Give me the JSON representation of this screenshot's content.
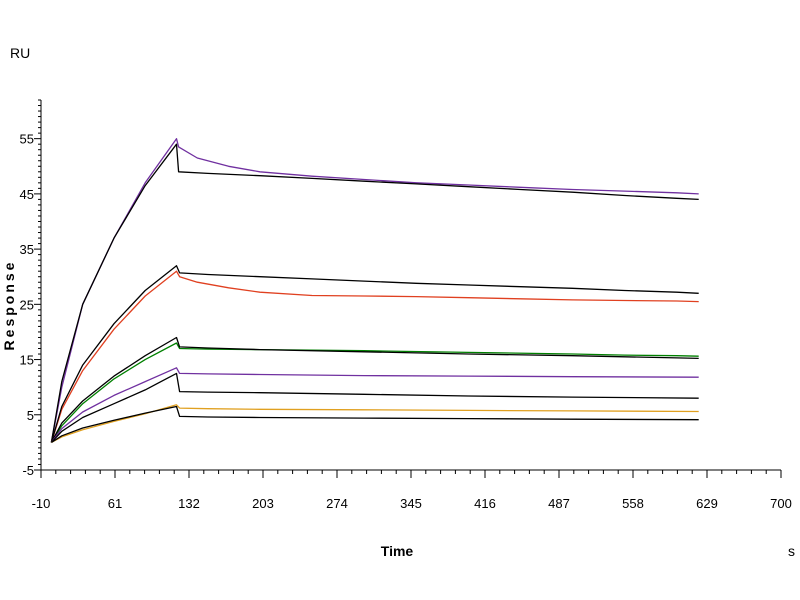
{
  "chart_data": {
    "type": "line",
    "title": "",
    "xlabel": "Time",
    "ylabel": "Response",
    "x_unit": "s",
    "y_unit": "RU",
    "xlim": [
      -10,
      700
    ],
    "ylim": [
      -5,
      62
    ],
    "x_ticks": [
      -10,
      61,
      132,
      203,
      274,
      345,
      416,
      487,
      558,
      629,
      700
    ],
    "y_ticks": [
      -5,
      5,
      15,
      25,
      35,
      45,
      55
    ],
    "grid": false,
    "legend": "none",
    "series": [
      {
        "color": "#7030a0",
        "x": [
          0,
          10,
          30,
          60,
          90,
          120,
          122,
          140,
          170,
          200,
          250,
          300,
          350,
          400,
          450,
          500,
          550,
          600,
          621
        ],
        "y": [
          0,
          10,
          25,
          37,
          47,
          55,
          53.5,
          51.5,
          50,
          49,
          48.2,
          47.6,
          47,
          46.6,
          46.2,
          45.8,
          45.5,
          45.2,
          45
        ]
      },
      {
        "color": "#000000",
        "x": [
          0,
          10,
          30,
          60,
          90,
          120,
          122,
          150,
          200,
          250,
          300,
          350,
          400,
          450,
          500,
          550,
          600,
          621
        ],
        "y": [
          0,
          11,
          25,
          37,
          46.5,
          54,
          49,
          48.7,
          48.3,
          47.8,
          47.3,
          46.8,
          46.3,
          45.8,
          45.3,
          44.7,
          44.2,
          44
        ]
      },
      {
        "color": "#e04020",
        "x": [
          0,
          10,
          30,
          60,
          90,
          120,
          123,
          140,
          170,
          200,
          250,
          300,
          350,
          400,
          450,
          500,
          550,
          600,
          621
        ],
        "y": [
          0,
          6,
          13,
          20.5,
          26.5,
          31,
          30,
          29,
          28,
          27.2,
          26.6,
          26.5,
          26.4,
          26.2,
          26,
          25.8,
          25.7,
          25.6,
          25.5
        ]
      },
      {
        "color": "#000000",
        "x": [
          0,
          10,
          30,
          60,
          90,
          120,
          123,
          150,
          200,
          250,
          300,
          350,
          400,
          450,
          500,
          550,
          600,
          621
        ],
        "y": [
          0,
          6.5,
          14,
          21.5,
          27.5,
          32,
          30.7,
          30.4,
          30,
          29.6,
          29.2,
          28.8,
          28.5,
          28.2,
          27.9,
          27.5,
          27.2,
          27
        ]
      },
      {
        "color": "#008000",
        "x": [
          0,
          10,
          30,
          60,
          90,
          120,
          123,
          150,
          200,
          300,
          400,
          500,
          550,
          600,
          621
        ],
        "y": [
          0,
          3,
          7,
          11.5,
          15,
          18,
          17,
          16.9,
          16.8,
          16.6,
          16.3,
          16,
          15.8,
          15.7,
          15.6
        ]
      },
      {
        "color": "#000000",
        "x": [
          0,
          10,
          30,
          60,
          90,
          120,
          123,
          150,
          200,
          300,
          400,
          500,
          550,
          600,
          621
        ],
        "y": [
          0,
          3.5,
          7.5,
          12,
          15.7,
          19,
          17.3,
          17.1,
          16.8,
          16.4,
          16,
          15.7,
          15.5,
          15.3,
          15.2
        ]
      },
      {
        "color": "#7030a0",
        "x": [
          0,
          10,
          30,
          60,
          90,
          120,
          123,
          150,
          200,
          300,
          400,
          500,
          621
        ],
        "y": [
          0,
          2.5,
          5.5,
          8.5,
          11,
          13.5,
          12.5,
          12.4,
          12.3,
          12.1,
          12,
          11.9,
          11.8
        ]
      },
      {
        "color": "#000000",
        "x": [
          0,
          10,
          30,
          60,
          90,
          120,
          123,
          150,
          200,
          300,
          400,
          500,
          621
        ],
        "y": [
          0,
          2,
          4.5,
          7,
          9.5,
          12.5,
          9.2,
          9.1,
          9,
          8.7,
          8.4,
          8.2,
          8
        ]
      },
      {
        "color": "#e0a020",
        "x": [
          0,
          10,
          30,
          60,
          90,
          120,
          123,
          150,
          200,
          300,
          400,
          500,
          621
        ],
        "y": [
          0,
          1,
          2.3,
          3.8,
          5.2,
          6.8,
          6.2,
          6.1,
          6,
          5.9,
          5.8,
          5.7,
          5.6
        ]
      },
      {
        "color": "#000000",
        "x": [
          0,
          10,
          30,
          60,
          90,
          120,
          123,
          150,
          200,
          300,
          400,
          500,
          621
        ],
        "y": [
          0,
          1.2,
          2.6,
          4,
          5.3,
          6.5,
          4.7,
          4.6,
          4.5,
          4.4,
          4.3,
          4.2,
          4.1
        ]
      }
    ]
  }
}
